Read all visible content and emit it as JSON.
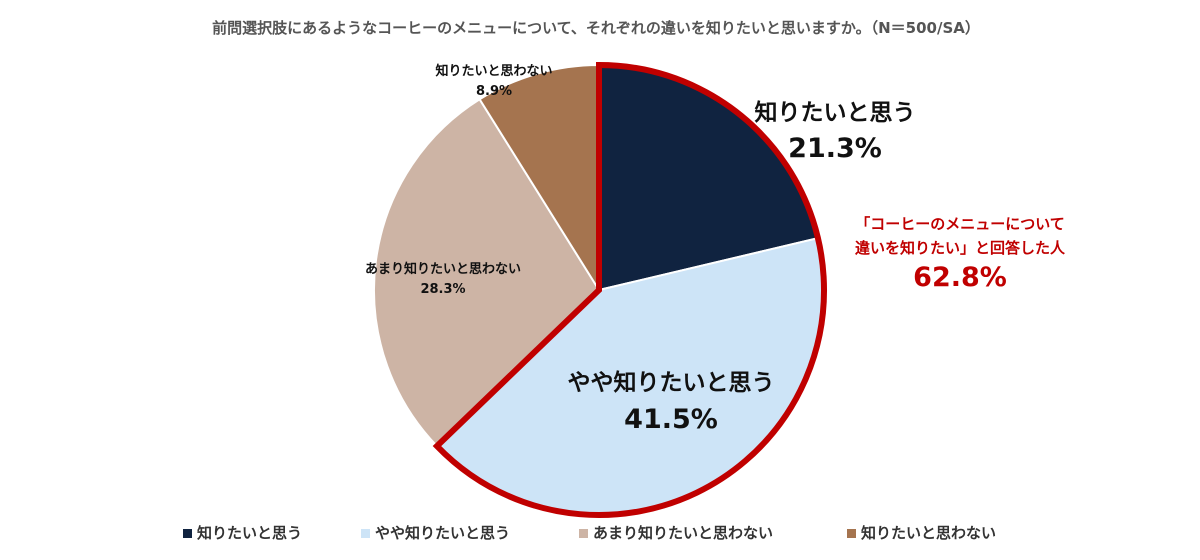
{
  "chart_data": {
    "type": "pie",
    "title": "前問選択肢にあるようなコーヒーのメニューについて、それぞれの違いを知りたいと思いますか。（N＝500/SA）",
    "categories": [
      "知りたいと思う",
      "やや知りたいと思う",
      "あまり知りたいと思わない",
      "知りたいと思わない"
    ],
    "values": [
      21.3,
      41.5,
      28.3,
      8.9
    ],
    "value_labels": [
      "21.3%",
      "41.5%",
      "28.3%",
      "8.9%"
    ],
    "colors": [
      "#102340",
      "#cde4f7",
      "#cdb4a5",
      "#a5744f"
    ],
    "legend_position": "bottom",
    "start_angle_deg": 0,
    "direction": "clockwise",
    "highlight": {
      "categories": [
        "知りたいと思う",
        "やや知りたいと思う"
      ],
      "outline_color": "#c00000",
      "line1": "「コーヒーのメニューについて",
      "line2": "違いを知りたい」と回答した人",
      "value_label": "62.8%"
    }
  }
}
